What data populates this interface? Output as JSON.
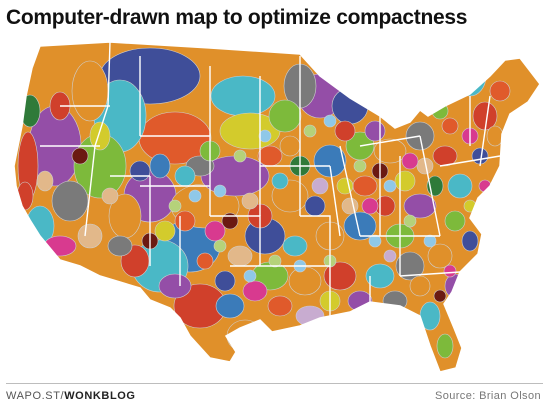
{
  "title": "Computer-drawn map to optimize compactness",
  "footer": {
    "brand_prefix": "WAPO.ST/",
    "brand_suffix": "WONKBLOG",
    "source": "Source: Brian Olson"
  },
  "palette": [
    "#3f4e99",
    "#4ab8c6",
    "#e0902a",
    "#7dba3b",
    "#944ea7",
    "#d3cb2c",
    "#e05a2b",
    "#7a7a7a",
    "#3b7bb9",
    "#d0402b",
    "#c8acd0",
    "#e2b88a",
    "#2f7a39",
    "#d83a8f",
    "#6b1a12",
    "#f0d04a",
    "#8fc8e8",
    "#b5d27a"
  ]
}
